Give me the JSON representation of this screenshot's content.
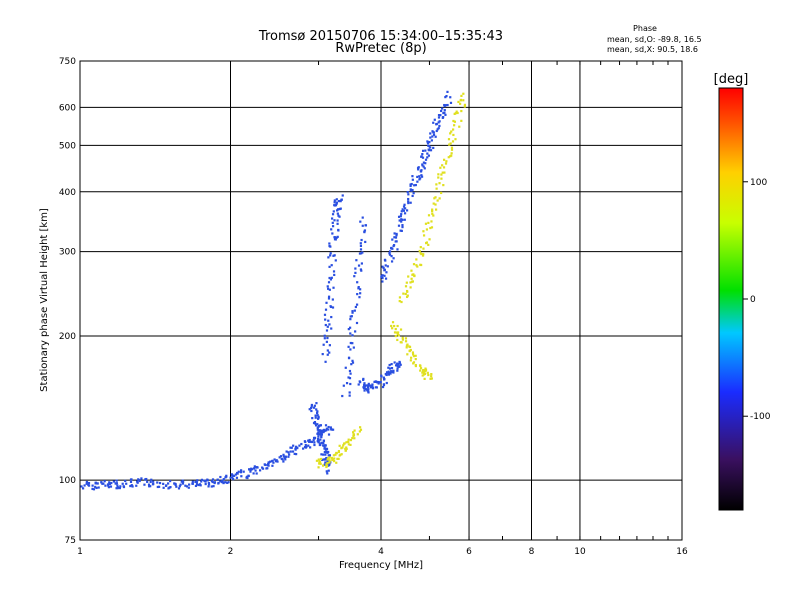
{
  "chart_data": {
    "type": "scatter",
    "title": "Tromsø 20150706 15:34:00–15:35:43",
    "subtitle": "RwPretec (8p)",
    "xlabel": "Frequency [MHz]",
    "ylabel": "Stationary phase Virtual Height [km]",
    "xscale": "log",
    "yscale": "log",
    "xlim": [
      1,
      16
    ],
    "ylim": [
      75,
      750
    ],
    "xticks": [
      1,
      2,
      4,
      6,
      8,
      10,
      16
    ],
    "xtick_labels": [
      "1",
      "2",
      "4",
      "6",
      "8",
      "10",
      "16"
    ],
    "yticks": [
      75,
      100,
      200,
      300,
      400,
      500,
      600,
      750
    ],
    "ytick_labels": [
      "75",
      "100",
      "200",
      "300",
      "400",
      "500",
      "600",
      "750"
    ],
    "grid": true,
    "phase_stats": {
      "heading": "Phase",
      "o_line": "mean, sd,O: -89.8, 16.5",
      "x_line": "mean, sd,X:  90.5, 18.6"
    },
    "colorbar": {
      "label": "[deg]",
      "range": [
        -180,
        180
      ],
      "ticks": [
        100,
        0,
        -100
      ],
      "tick_labels": [
        "100",
        "0",
        "-100"
      ]
    },
    "series": [
      {
        "name": "O",
        "color": "#2a4fe0",
        "mean_phase_deg": -89.8,
        "traces": [
          {
            "x": [
              1.0,
              1.1,
              1.2,
              1.35,
              1.5,
              1.7,
              1.85,
              2.0
            ],
            "y": [
              97,
              98,
              98,
              99,
              98,
              98,
              99,
              101
            ]
          },
          {
            "x": [
              2.0,
              2.2,
              2.4,
              2.6,
              2.8,
              3.0,
              3.2
            ],
            "y": [
              101,
              104,
              108,
              113,
              118,
              123,
              130
            ]
          },
          {
            "x": [
              2.9,
              3.0,
              3.05,
              3.1,
              3.15
            ],
            "y": [
              145,
              130,
              120,
              112,
              105
            ]
          },
          {
            "x": [
              3.1,
              3.15,
              3.2,
              3.25,
              3.3
            ],
            "y": [
              180,
              230,
              300,
              360,
              390
            ]
          },
          {
            "x": [
              3.4,
              3.5,
              3.6,
              3.7
            ],
            "y": [
              150,
              200,
              270,
              360
            ]
          },
          {
            "x": [
              3.65,
              3.8,
              4.0,
              4.2,
              4.4
            ],
            "y": [
              160,
              155,
              160,
              170,
              175
            ]
          },
          {
            "x": [
              4.0,
              4.2,
              4.4,
              4.6,
              4.8,
              5.0,
              5.2,
              5.5
            ],
            "y": [
              260,
              300,
              350,
              400,
              450,
              500,
              560,
              640
            ]
          }
        ]
      },
      {
        "name": "X",
        "color": "#e0e020",
        "mean_phase_deg": 90.5,
        "traces": [
          {
            "x": [
              4.4,
              4.7,
              5.0,
              5.3,
              5.6,
              5.9
            ],
            "y": [
              238,
              275,
              340,
              430,
              530,
              650
            ]
          },
          {
            "x": [
              4.2,
              4.5,
              4.8,
              5.0
            ],
            "y": [
              210,
              190,
              170,
              165
            ]
          },
          {
            "x": [
              3.0,
              3.2,
              3.4,
              3.6
            ],
            "y": [
              108,
              110,
              118,
              128
            ]
          }
        ]
      }
    ]
  }
}
